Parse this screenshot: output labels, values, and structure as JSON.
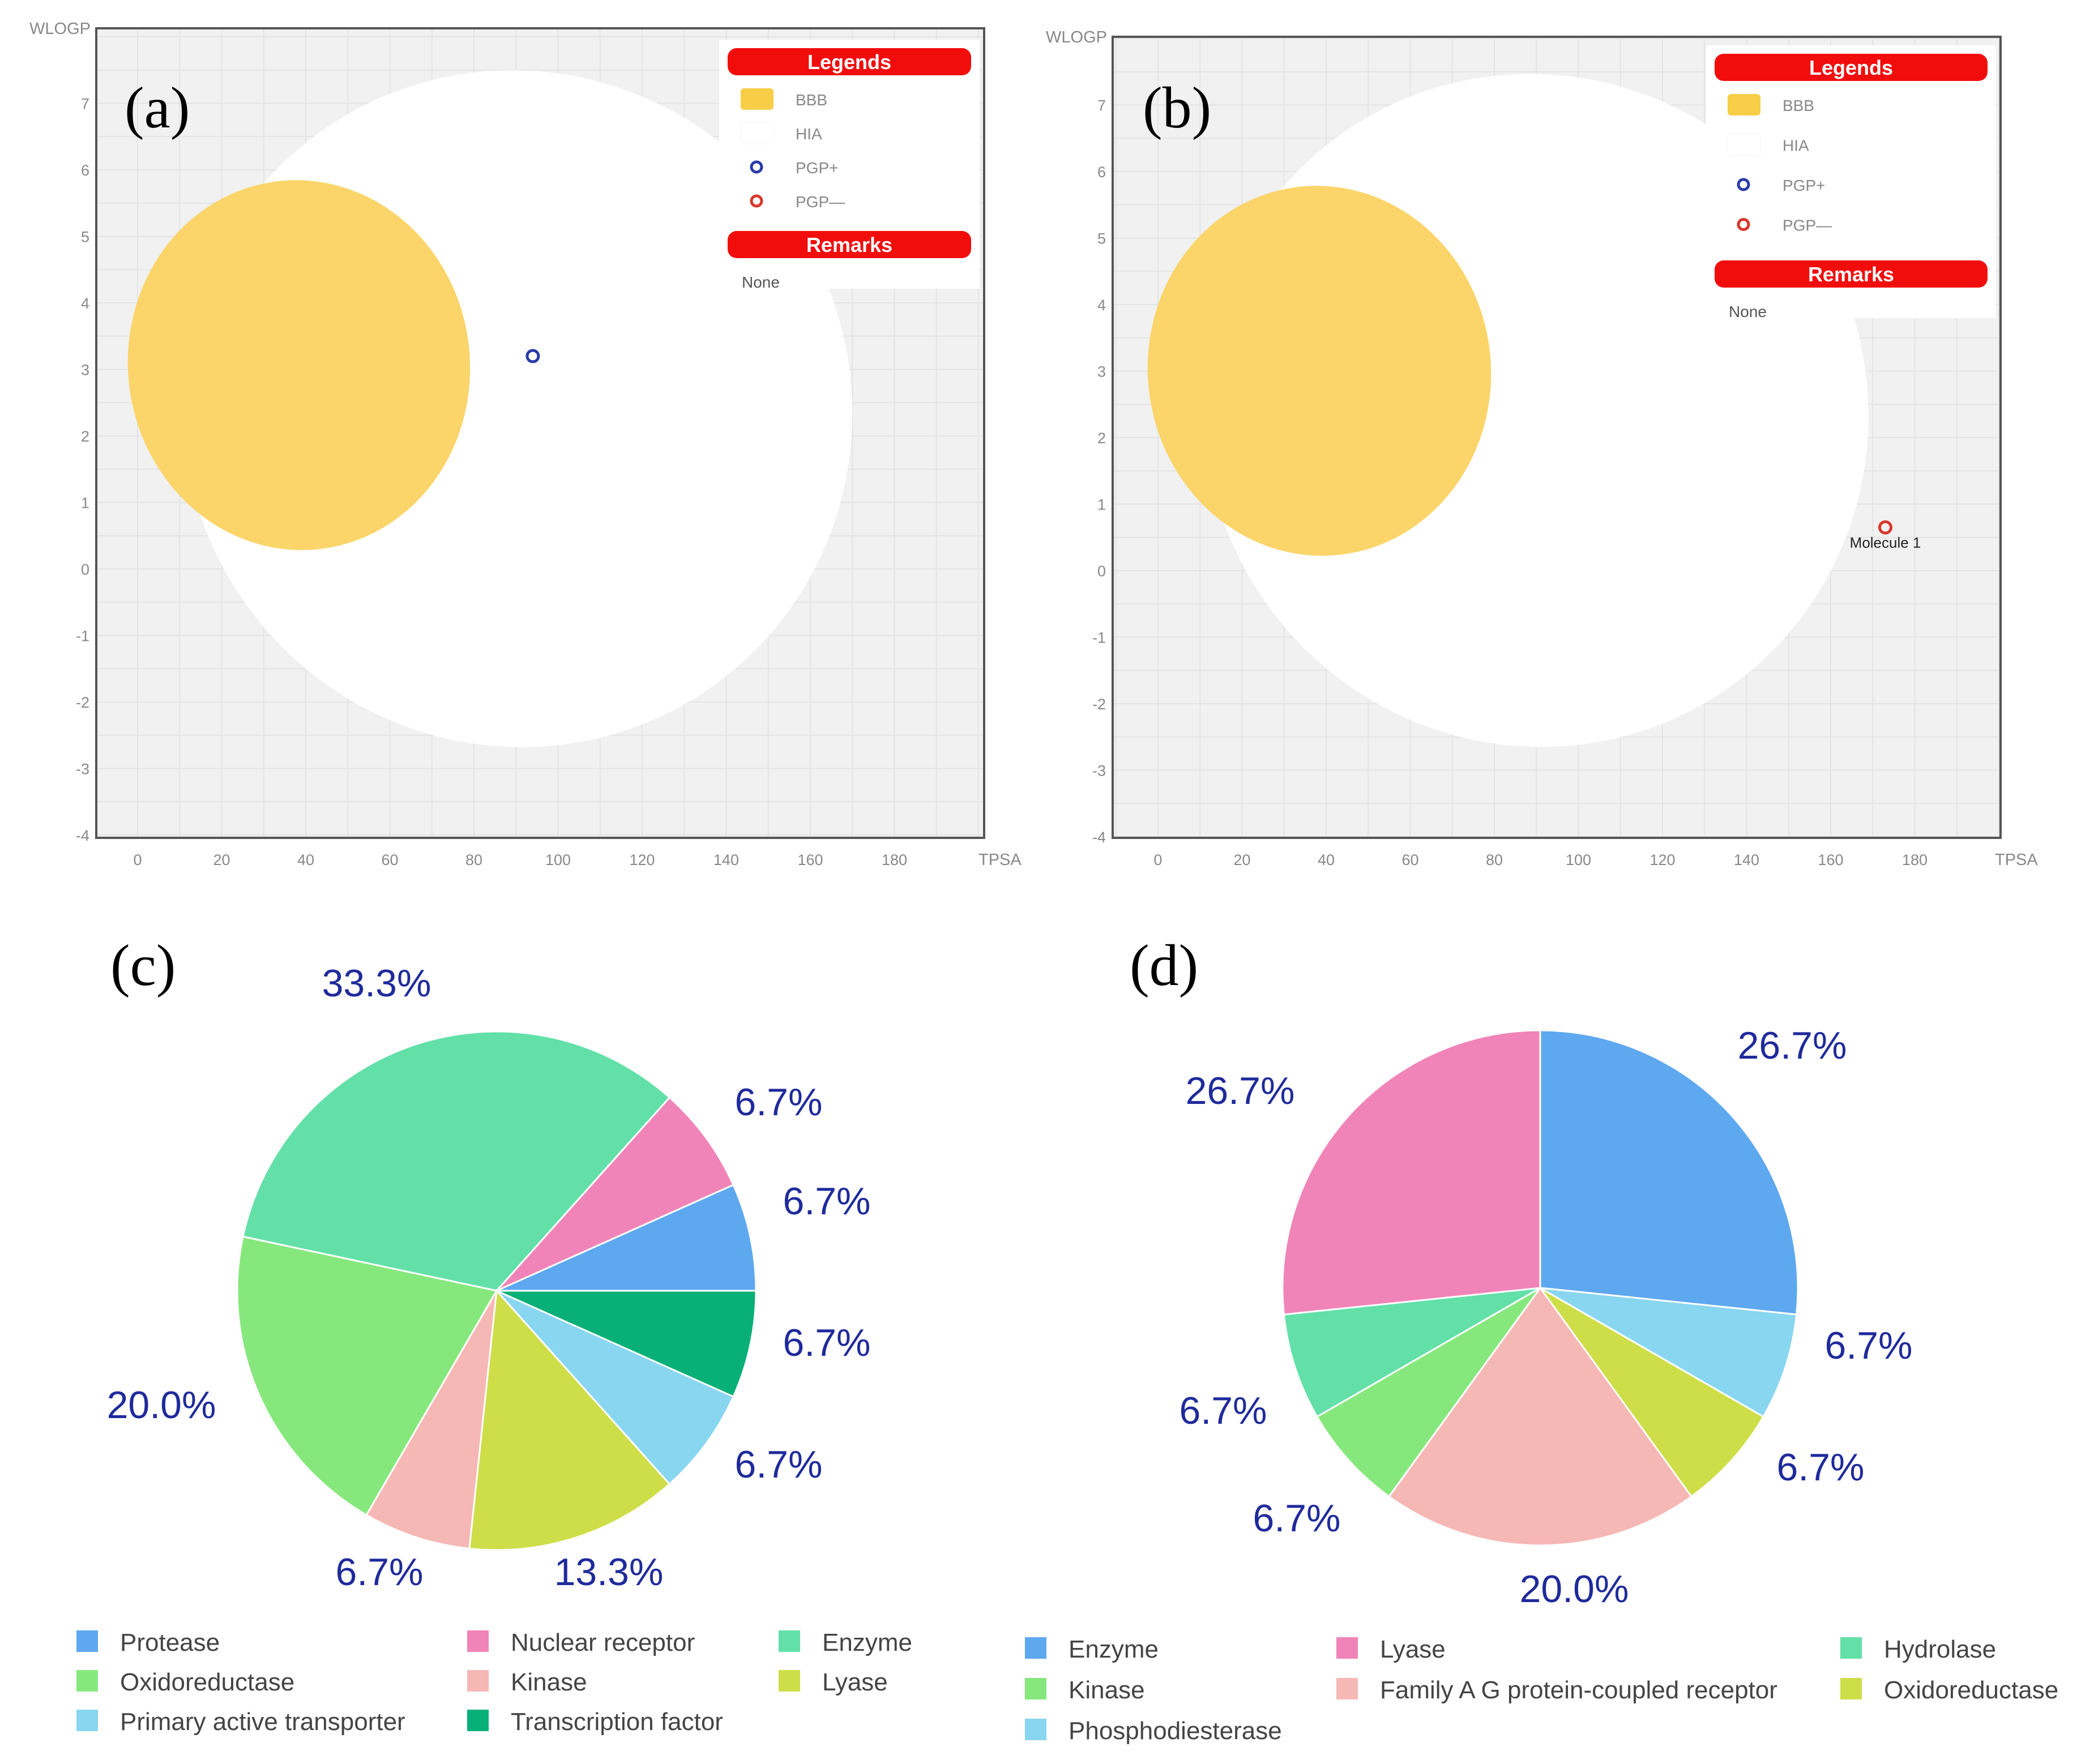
{
  "panels": {
    "a": "(a)",
    "b": "(b)",
    "c": "(c)",
    "d": "(d)"
  },
  "chart_data": [
    {
      "id": "a",
      "type": "scatter",
      "xlabel": "TPSA",
      "ylabel": "WLOGP",
      "xlim": [
        -10,
        200
      ],
      "ylim": [
        -4,
        8
      ],
      "xticks": [
        0,
        20,
        40,
        60,
        80,
        100,
        120,
        140,
        160,
        180
      ],
      "yticks": [
        -4,
        -3,
        -2,
        -1,
        0,
        1,
        2,
        3,
        4,
        5,
        6,
        7
      ],
      "grid": true,
      "legend": {
        "title": "Legends",
        "items": [
          {
            "label": "BBB",
            "color": "#f8cd48"
          },
          {
            "label": "HIA",
            "color": "#ffffff"
          },
          {
            "label": "PGP+",
            "color": "#2a3aa8"
          },
          {
            "label": "PGP—",
            "color": "#d9372c"
          }
        ],
        "remarks_title": "Remarks",
        "remarks": "None",
        "placement": "top-right"
      },
      "points": [
        {
          "x": 94,
          "y": 3.2,
          "class": "PGP+",
          "color": "#2a3aa8",
          "label": ""
        }
      ]
    },
    {
      "id": "b",
      "type": "scatter",
      "xlabel": "TPSA",
      "ylabel": "WLOGP",
      "xlim": [
        -10,
        200
      ],
      "ylim": [
        -4,
        8
      ],
      "xticks": [
        0,
        20,
        40,
        60,
        80,
        100,
        120,
        140,
        160,
        180
      ],
      "yticks": [
        -4,
        -3,
        -2,
        -1,
        0,
        1,
        2,
        3,
        4,
        5,
        6,
        7
      ],
      "grid": true,
      "legend": {
        "title": "Legends",
        "items": [
          {
            "label": "BBB",
            "color": "#f8cd48"
          },
          {
            "label": "HIA",
            "color": "#ffffff"
          },
          {
            "label": "PGP+",
            "color": "#2a3aa8"
          },
          {
            "label": "PGP—",
            "color": "#d9372c"
          }
        ],
        "remarks_title": "Remarks",
        "remarks": "None",
        "placement": "top-right"
      },
      "points": [
        {
          "x": 173,
          "y": 0.65,
          "class": "PGP—",
          "color": "#d9372c",
          "label": "Molecule 1"
        }
      ]
    },
    {
      "id": "c",
      "type": "pie",
      "slices": [
        {
          "name": "Protease",
          "value": 6.7,
          "label": "6.7%",
          "color": "#5ea8f0"
        },
        {
          "name": "Nuclear receptor",
          "value": 6.7,
          "label": "6.7%",
          "color": "#f084b8"
        },
        {
          "name": "Enzyme",
          "value": 33.3,
          "label": "33.3%",
          "color": "#62e0a8"
        },
        {
          "name": "Oxidoreductase",
          "value": 20.0,
          "label": "20.0%",
          "color": "#86e87c"
        },
        {
          "name": "Kinase",
          "value": 6.7,
          "label": "6.7%",
          "color": "#f5b8b5"
        },
        {
          "name": "Lyase",
          "value": 13.3,
          "label": "13.3%",
          "color": "#cede48"
        },
        {
          "name": "Primary active transporter",
          "value": 6.7,
          "label": "6.7%",
          "color": "#88d6f0"
        },
        {
          "name": "Transcription factor",
          "value": 6.7,
          "label": "6.7%",
          "color": "#08b078"
        }
      ],
      "legend_order": [
        "Protease",
        "Nuclear receptor",
        "Enzyme",
        "Oxidoreductase",
        "Kinase",
        "Lyase",
        "Primary active transporter",
        "Transcription factor"
      ]
    },
    {
      "id": "d",
      "type": "pie",
      "slices": [
        {
          "name": "Enzyme",
          "value": 26.7,
          "label": "26.7%",
          "color": "#5ea8f0"
        },
        {
          "name": "Phosphodiesterase",
          "value": 6.7,
          "label": "6.7%",
          "color": "#88d6f0"
        },
        {
          "name": "Oxidoreductase",
          "value": 6.7,
          "label": "6.7%",
          "color": "#cede48"
        },
        {
          "name": "Family A G protein-coupled receptor",
          "value": 20.0,
          "label": "20.0%",
          "color": "#f5b8b5"
        },
        {
          "name": "Kinase",
          "value": 6.7,
          "label": "6.7%",
          "color": "#86e87c"
        },
        {
          "name": "Hydrolase",
          "value": 6.7,
          "label": "6.7%",
          "color": "#62e0a8"
        },
        {
          "name": "Lyase",
          "value": 26.7,
          "label": "26.7%",
          "color": "#f084b8"
        }
      ],
      "legend_order": [
        "Enzyme",
        "Lyase",
        "Hydrolase",
        "Kinase",
        "Family A G protein-coupled receptor",
        "Oxidoreductase",
        "Phosphodiesterase"
      ]
    }
  ]
}
